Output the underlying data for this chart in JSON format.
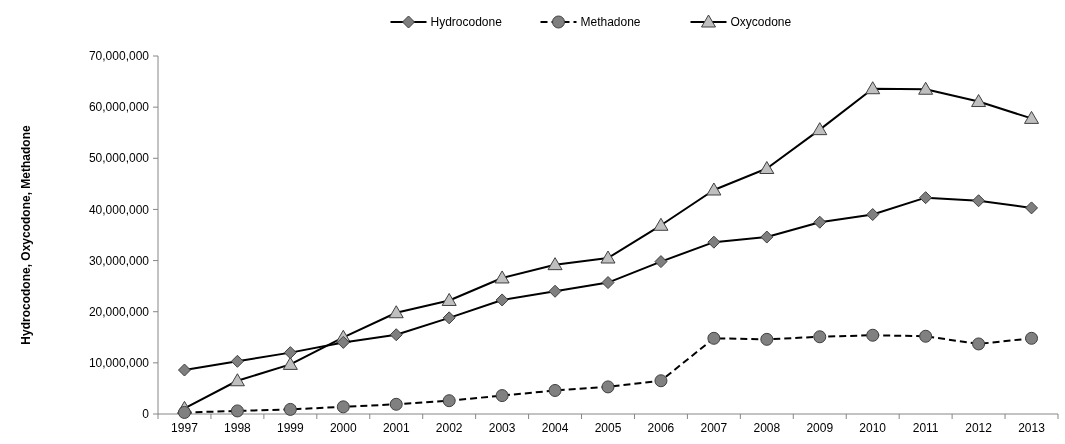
{
  "chart_data": {
    "type": "line",
    "ylabel": "Hydrocodone, Oxycodone, Methadone",
    "categories": [
      "1997",
      "1998",
      "1999",
      "2000",
      "2001",
      "2002",
      "2003",
      "2004",
      "2005",
      "2006",
      "2007",
      "2008",
      "2009",
      "2010",
      "2011",
      "2012",
      "2013"
    ],
    "series": [
      {
        "name": "Hydrocodone",
        "color": "#7f7f7f",
        "marker": "diamond",
        "line_style": "solid",
        "values": [
          8600000,
          10300000,
          12000000,
          14000000,
          15500000,
          18800000,
          22300000,
          24000000,
          25700000,
          29800000,
          33600000,
          34600000,
          37500000,
          39000000,
          42300000,
          41700000,
          40300000
        ]
      },
      {
        "name": "Methadone",
        "color": "#808080",
        "marker": "circle",
        "line_style": "dashed",
        "values": [
          300000,
          600000,
          900000,
          1400000,
          1900000,
          2600000,
          3600000,
          4600000,
          5300000,
          6500000,
          14800000,
          14600000,
          15100000,
          15400000,
          15200000,
          13700000,
          14800000
        ]
      },
      {
        "name": "Oxycodone",
        "color": "#bfbfbf",
        "marker": "triangle",
        "line_style": "solid",
        "values": [
          1100000,
          6500000,
          9700000,
          15000000,
          19800000,
          22200000,
          26600000,
          29200000,
          30500000,
          36900000,
          43800000,
          48000000,
          55600000,
          63600000,
          63500000,
          61100000,
          57800000
        ]
      }
    ],
    "ylim": [
      0,
      70000000
    ],
    "yticks": [
      {
        "value": 0,
        "label": "0"
      },
      {
        "value": 10000000,
        "label": "10,000,000"
      },
      {
        "value": 20000000,
        "label": "20,000,000"
      },
      {
        "value": 30000000,
        "label": "30,000,000"
      },
      {
        "value": 40000000,
        "label": "40,000,000"
      },
      {
        "value": 50000000,
        "label": "50,000,000"
      },
      {
        "value": 60000000,
        "label": "60,000,000"
      },
      {
        "value": 70000000,
        "label": "70,000,000"
      }
    ],
    "grid": false,
    "legend": "top"
  }
}
